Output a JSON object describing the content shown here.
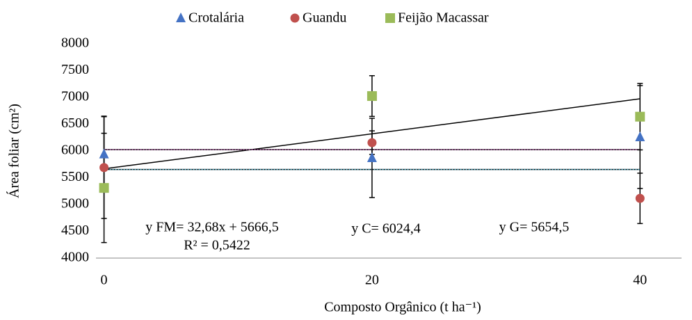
{
  "chart_data": {
    "type": "scatter",
    "x_label": "Composto Orgânico (t ha⁻¹)",
    "y_label": "Área foliar (cm²)",
    "xlim": [
      -0.6,
      43.1
    ],
    "ylim": [
      4000,
      8000
    ],
    "xticks": [
      0,
      20,
      40
    ],
    "yticks": [
      4000,
      4500,
      5000,
      5500,
      6000,
      6500,
      7000,
      7500,
      8000
    ],
    "grid": false,
    "legend": "top",
    "x": [
      0,
      20,
      40
    ],
    "series": [
      {
        "name": "Crotalária",
        "color": "#4472c4",
        "marker": "triangle",
        "values": [
          5940,
          5870,
          6260
        ],
        "errors": [
          710,
          740,
          960
        ]
      },
      {
        "name": "Guandu",
        "color": "#c0504d",
        "marker": "circle",
        "values": [
          5690,
          6155,
          5115
        ],
        "errors": [
          950,
          220,
          470
        ]
      },
      {
        "name": "Feijão Macassar",
        "color": "#9bbb59",
        "marker": "square",
        "values": [
          5310,
          7025,
          6640
        ],
        "errors": [
          1020,
          380,
          620
        ]
      }
    ],
    "trendlines": [
      {
        "slope": 32.68,
        "intercept": 5666.5,
        "color": "#000000",
        "label": "y FM= 32,68x + 5666,5",
        "r2_label": "R² = 0,5422"
      },
      {
        "slope": 0,
        "intercept": 6024.4,
        "color": "#a64d9b",
        "label": "y C= 6024,4"
      },
      {
        "slope": 0,
        "intercept": 5654.5,
        "color": "#4bacc6",
        "label": "y G= 5654,5"
      }
    ]
  }
}
